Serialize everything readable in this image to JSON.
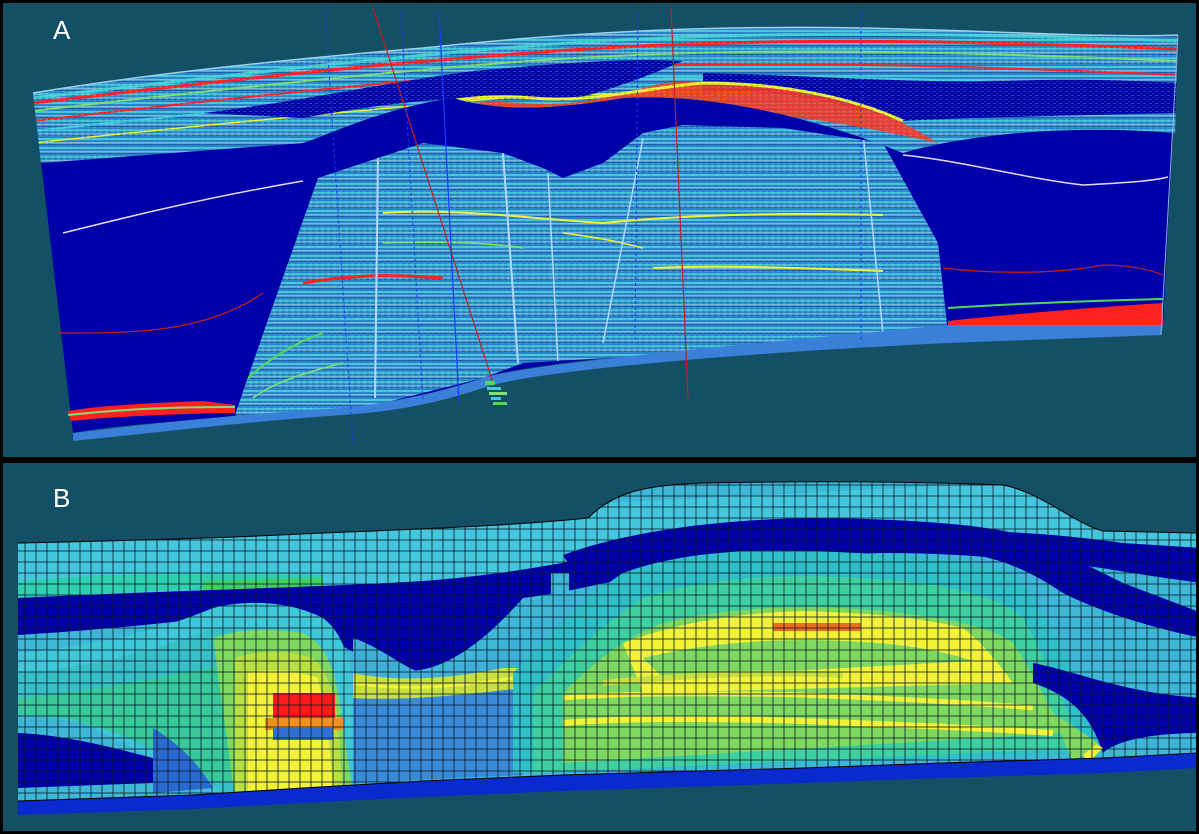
{
  "panels": {
    "a": {
      "label": "A"
    },
    "b": {
      "label": "B"
    }
  },
  "colors": {
    "background": "#134f65",
    "deep_blue": "#0000a8",
    "base_blue": "#2e6fd0",
    "light_blue": "#2f8fd8",
    "cyan": "#3fc8d8",
    "teal": "#20b0c0",
    "green": "#4fd860",
    "yellow": "#f2f23a",
    "orange": "#f09020",
    "red": "#ff1a1a",
    "grid_line": "#0a1a2a",
    "well_blue": "#1a3aff",
    "well_red": "#c02020",
    "horizon_white": "#e8d8f0"
  }
}
